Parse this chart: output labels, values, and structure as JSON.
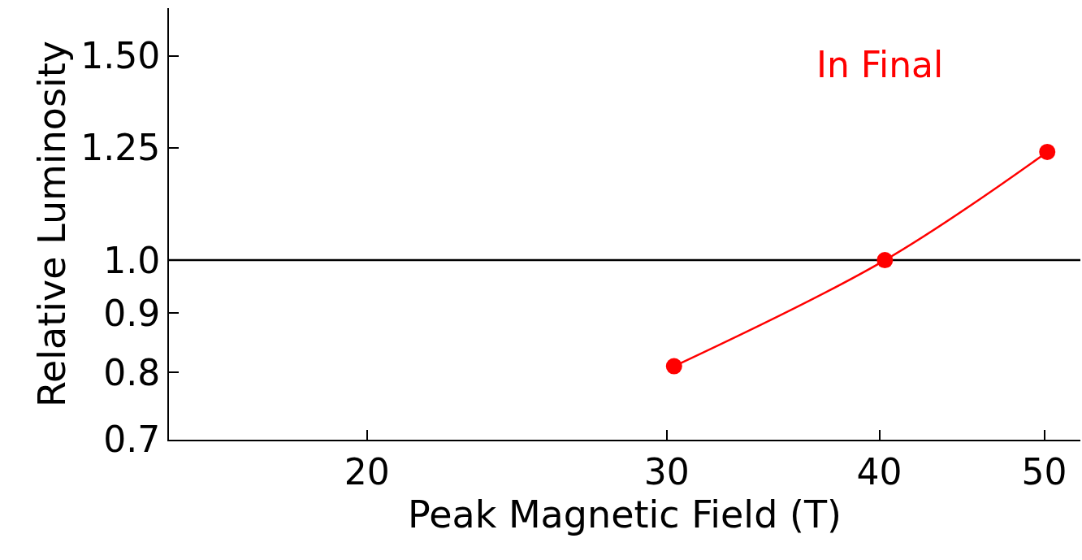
{
  "chart_data": {
    "type": "line",
    "xlabel": "Peak Magnetic Field (T)",
    "ylabel": "Relative Luminosity",
    "series": [
      {
        "name": "In Final",
        "color": "#ff0000",
        "x": [
          30.3,
          40.3,
          50.2
        ],
        "values": [
          0.81,
          1.0,
          1.24
        ]
      }
    ],
    "log": "xy",
    "xlim": [
      15.3,
      52.5
    ],
    "xticks": [
      20,
      30,
      40,
      50
    ],
    "ylim": [
      0.7,
      1.65
    ],
    "yticks": [
      0.7,
      0.8,
      0.9,
      {
        "value": 1,
        "label": "1.0"
      },
      1.25,
      {
        "value": 1.5,
        "label": "1.50"
      }
    ],
    "ref_lines": [
      {
        "axis": "y",
        "value": 1,
        "color": "#000000"
      }
    ],
    "marker": "circle",
    "line_style": "solid",
    "grid": false,
    "legend": false
  }
}
